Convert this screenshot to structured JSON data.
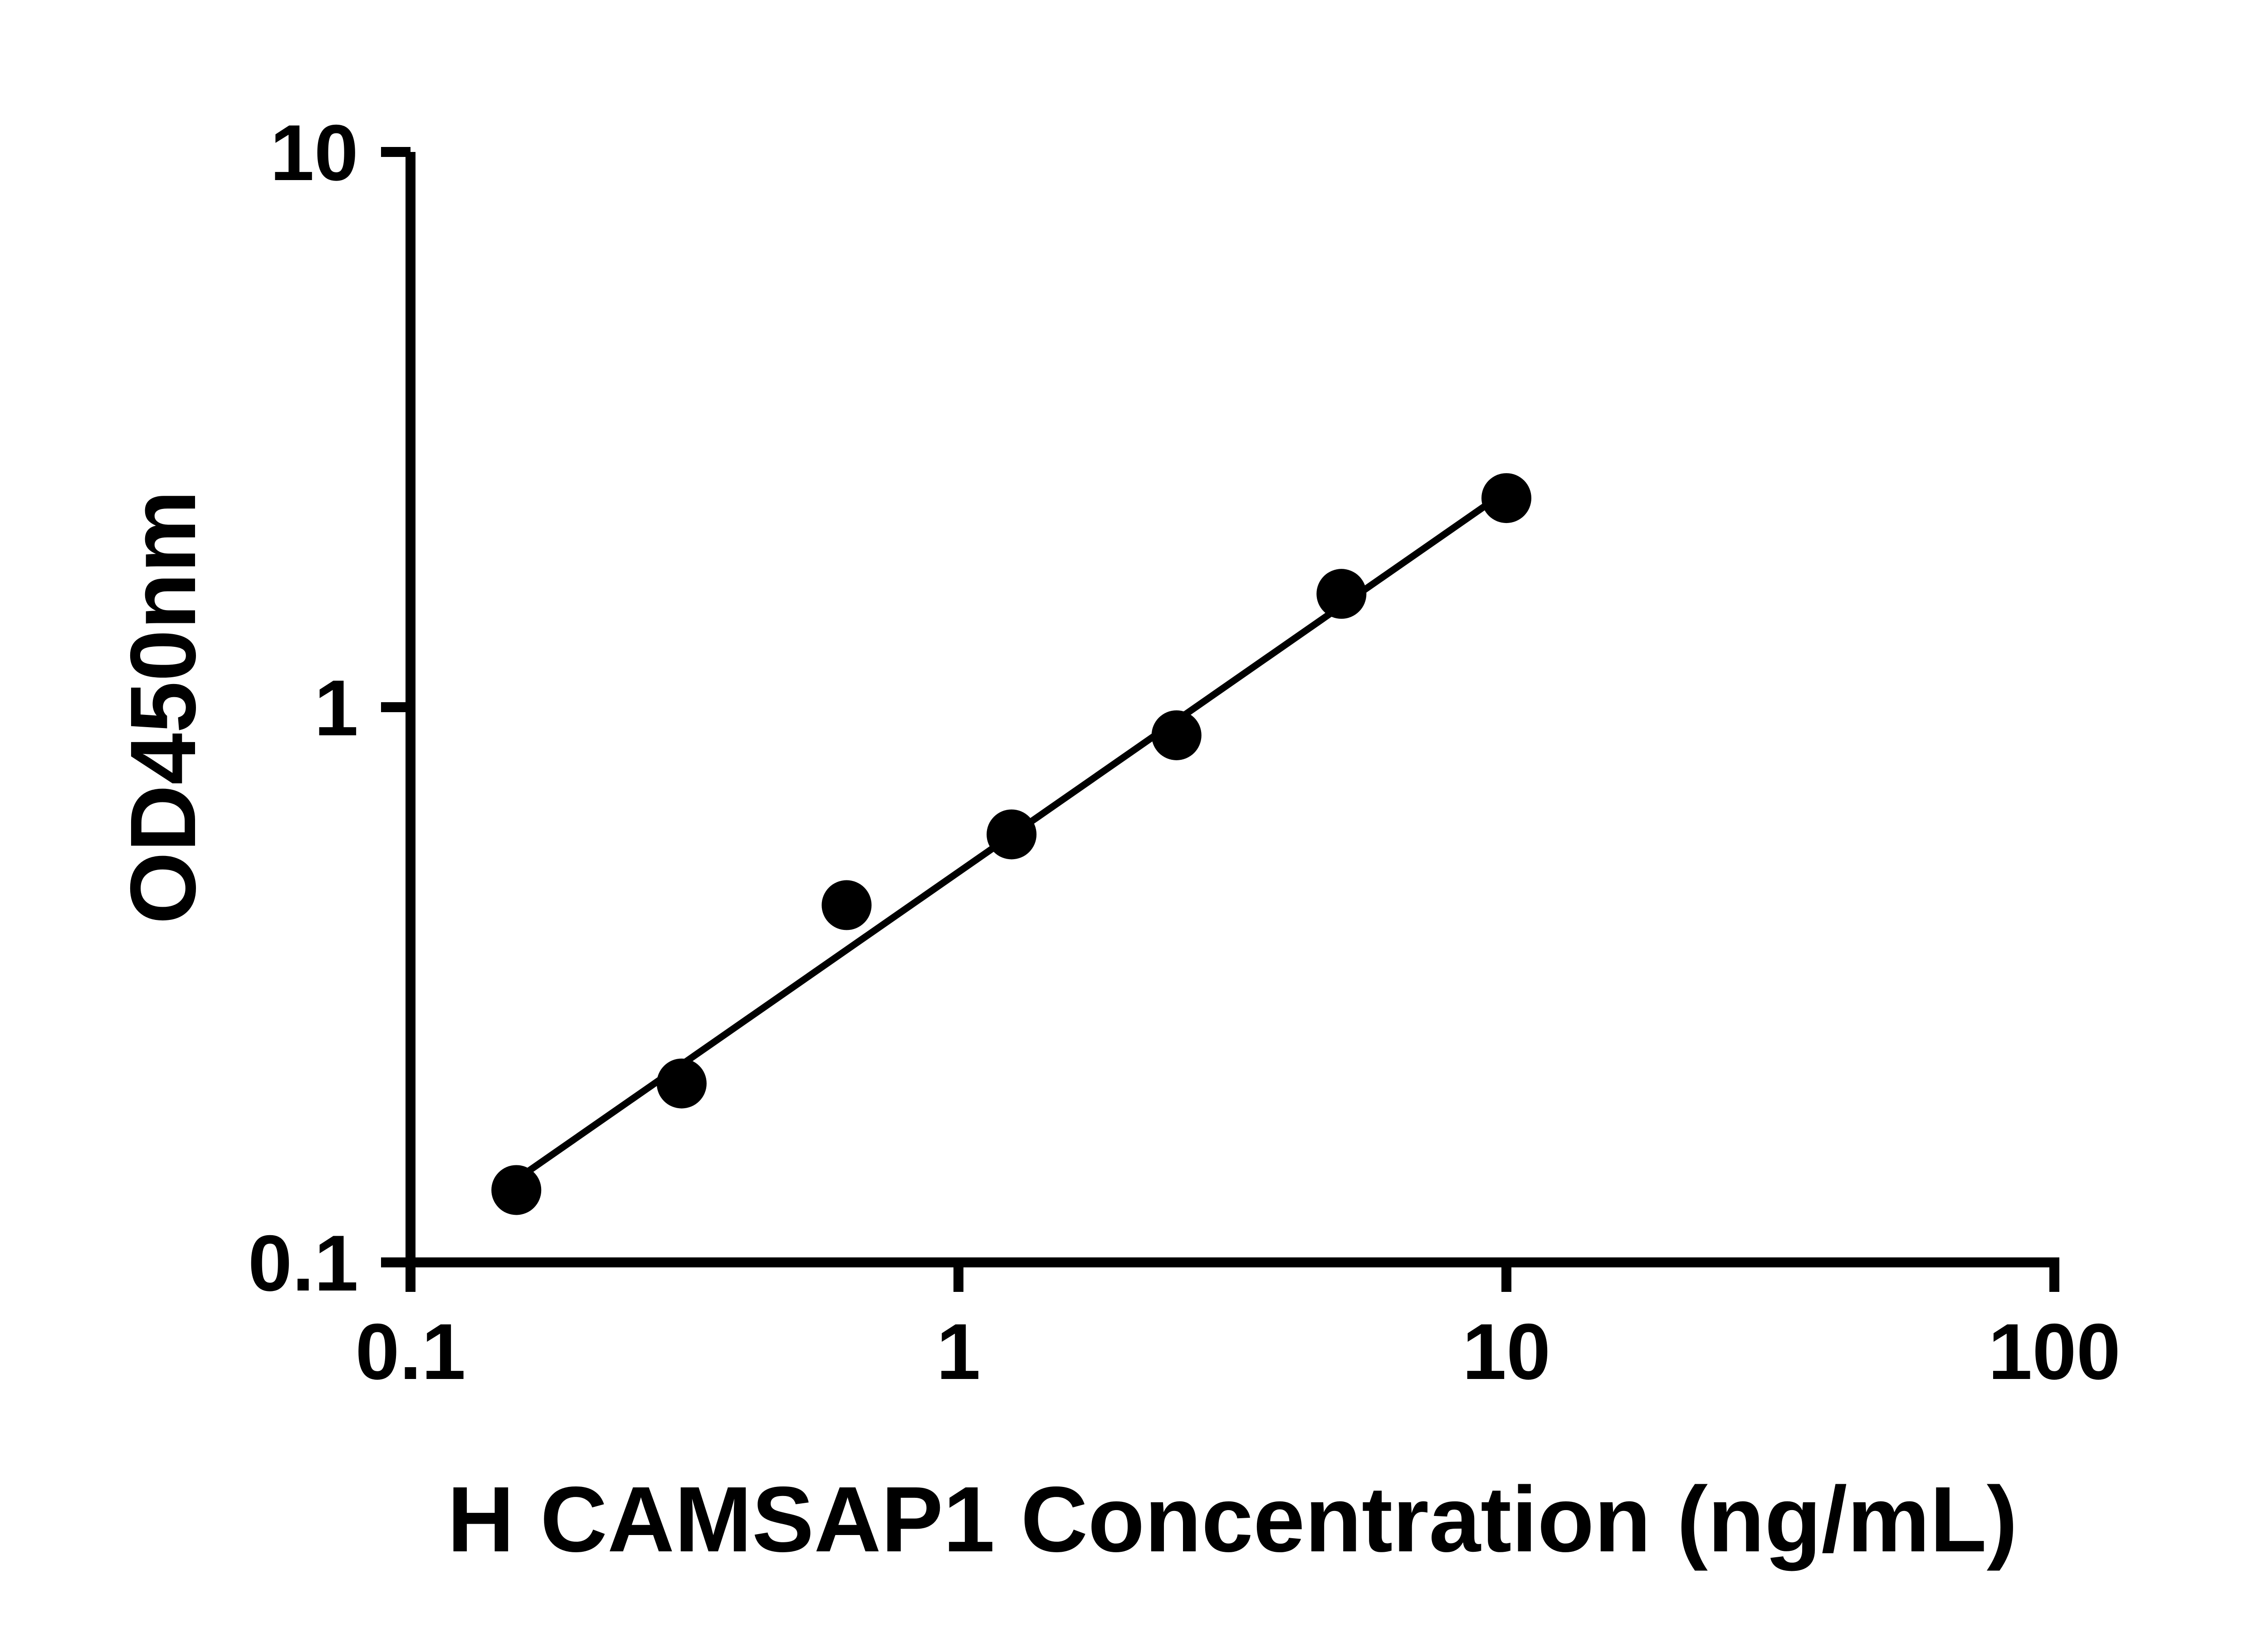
{
  "chart_data": {
    "type": "scatter",
    "title": "",
    "xlabel": "H CAMSAP1 Concentration (ng/mL)",
    "ylabel": "OD450nm",
    "x_scale": "log",
    "y_scale": "log",
    "xlim": [
      0.1,
      100
    ],
    "ylim": [
      0.1,
      10
    ],
    "x_ticks": [
      0.1,
      1,
      10,
      100
    ],
    "x_tick_labels": [
      "0.1",
      "1",
      "10",
      "100"
    ],
    "y_ticks": [
      0.1,
      1,
      10
    ],
    "y_tick_labels": [
      "0.1",
      "1",
      "10"
    ],
    "grid": false,
    "legend": false,
    "series": [
      {
        "name": "standard-curve-fit",
        "type": "line",
        "color": "#000000",
        "x": [
          0.156,
          10
        ],
        "y": [
          0.141,
          2.45
        ]
      },
      {
        "name": "standard-curve-points",
        "type": "scatter",
        "marker": "filled-circle",
        "color": "#000000",
        "x": [
          0.156,
          0.3125,
          0.625,
          1.25,
          2.5,
          5,
          10
        ],
        "y": [
          0.135,
          0.21,
          0.44,
          0.59,
          0.89,
          1.6,
          2.38
        ]
      }
    ]
  }
}
